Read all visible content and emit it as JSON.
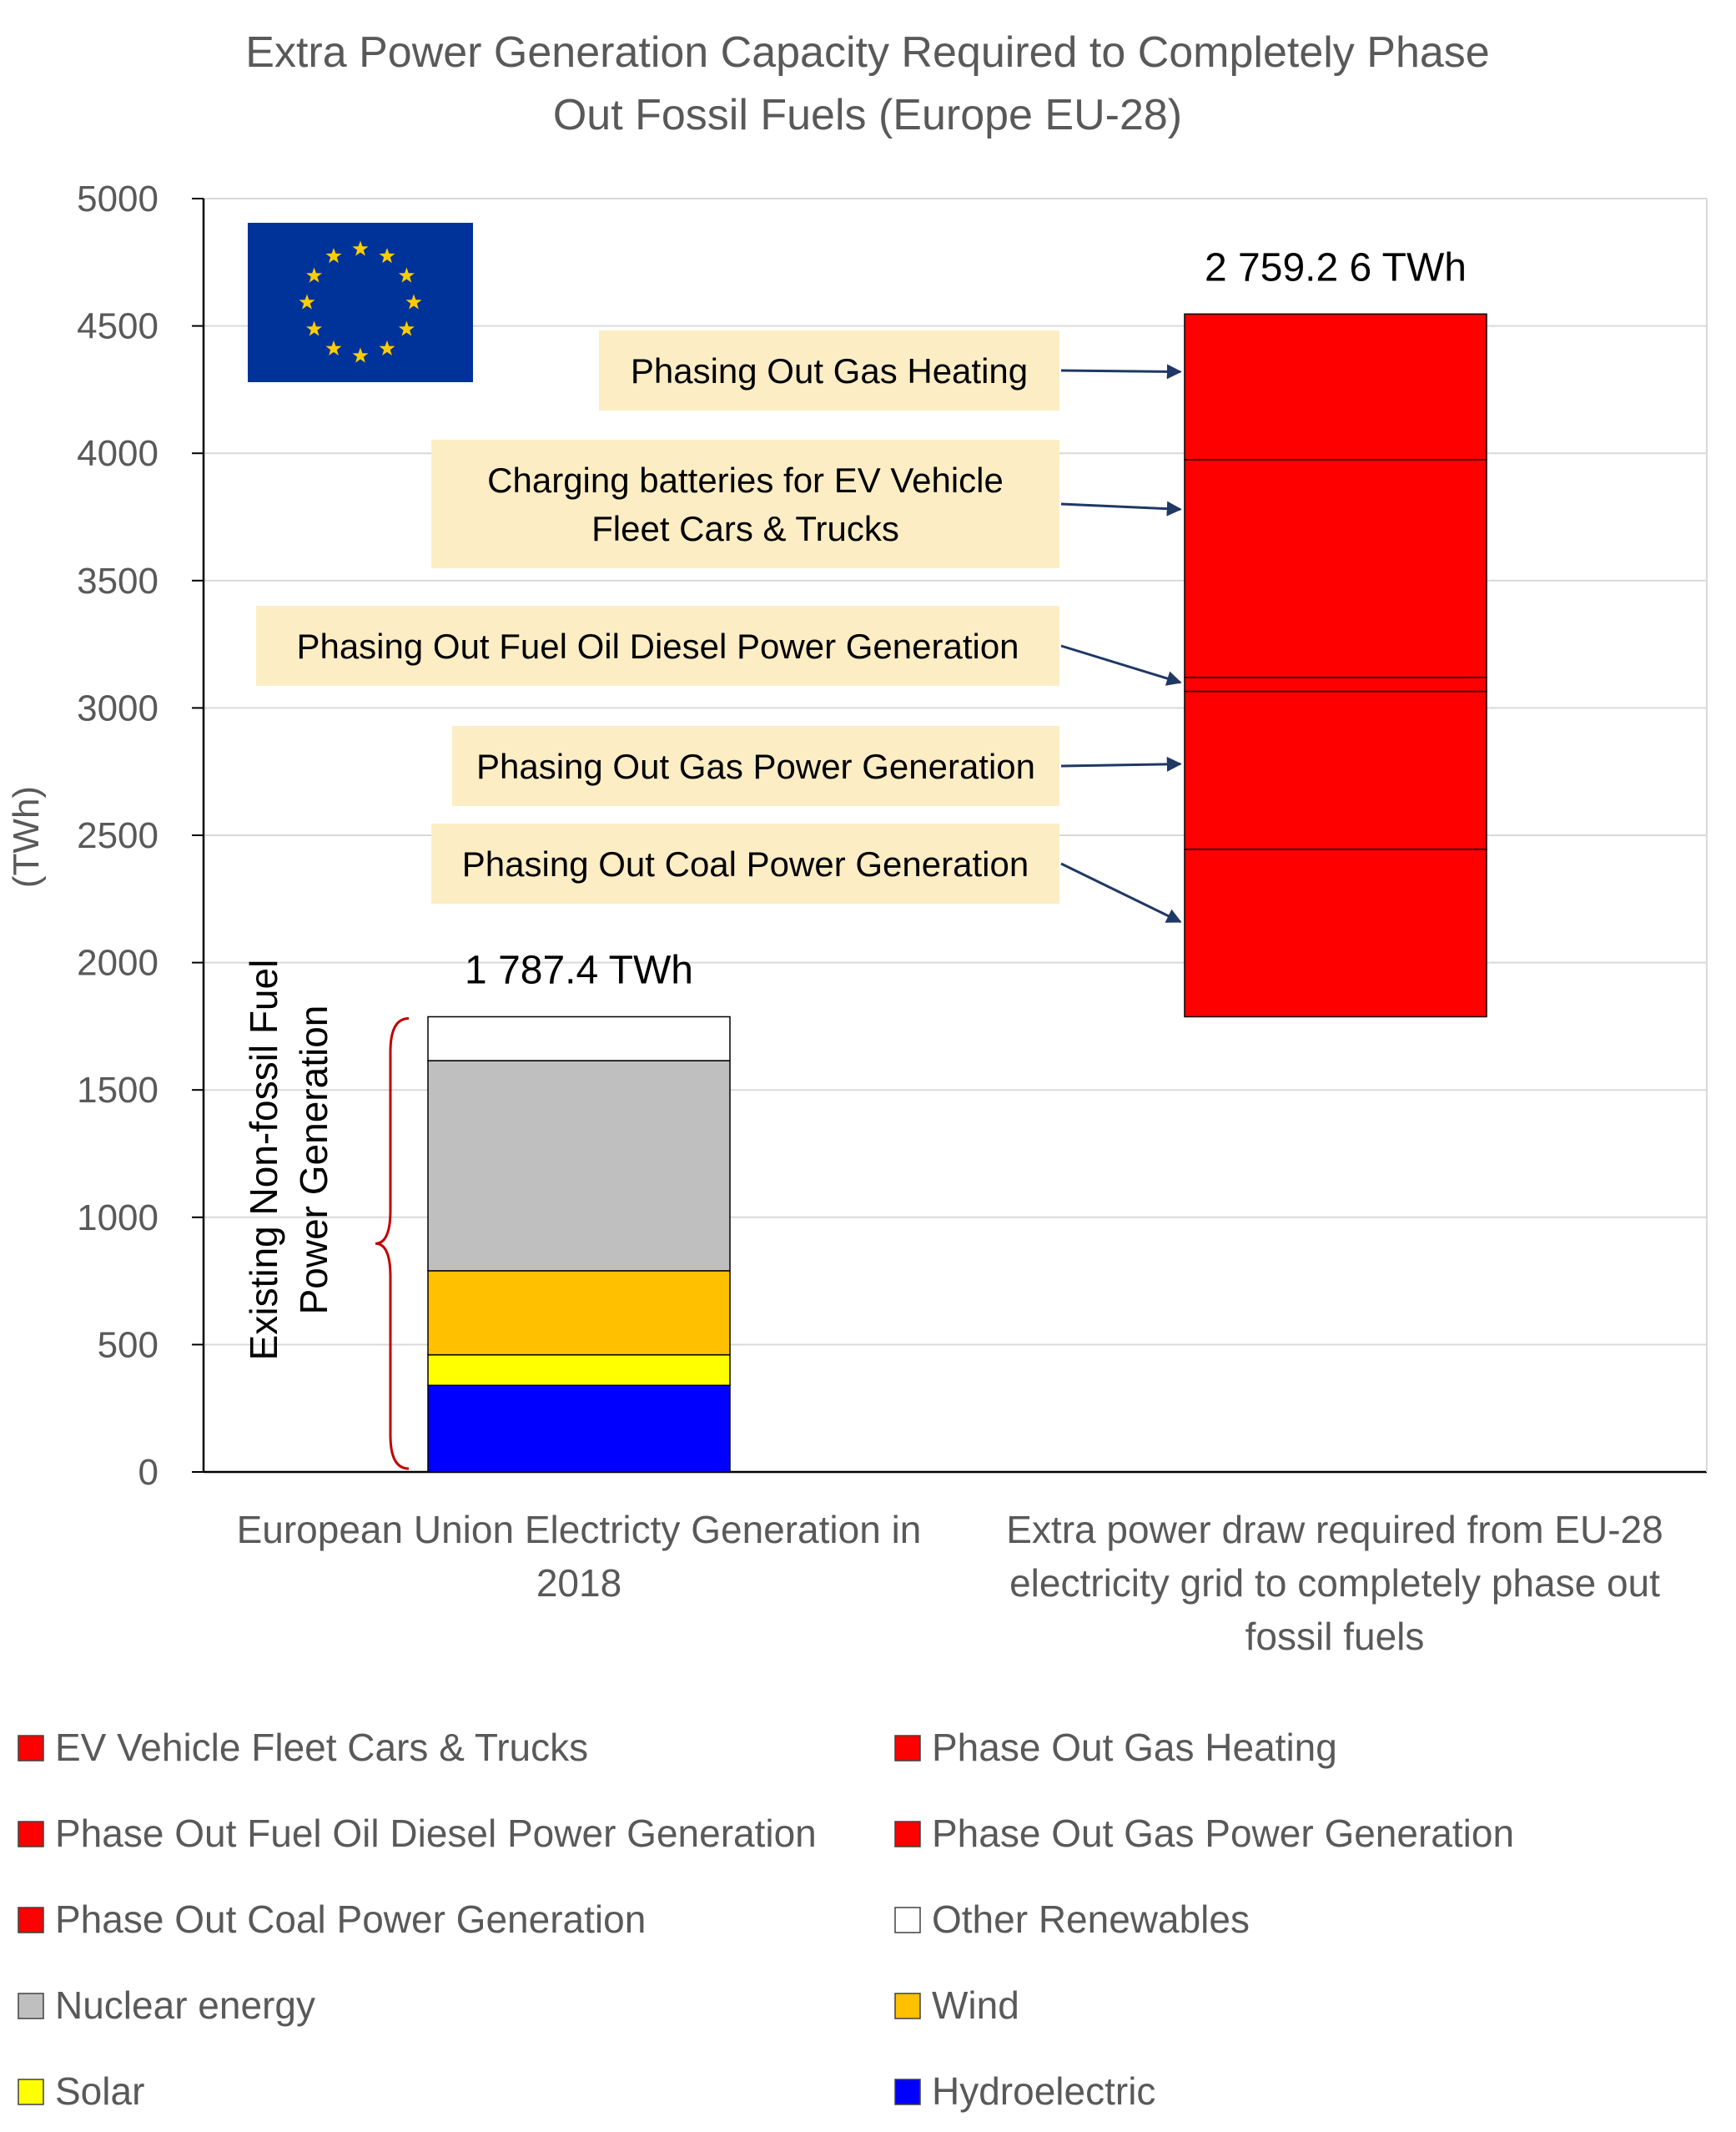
{
  "chart_data": {
    "type": "bar",
    "stacked": true,
    "title_lines": [
      "Extra Power Generation Capacity Required to Completely Phase",
      "Out Fossil Fuels (Europe EU-28)"
    ],
    "ylabel": "(TWh)",
    "ylim": [
      0,
      5000
    ],
    "yticks": [
      "0",
      "500",
      "1000",
      "1500",
      "2000",
      "2500",
      "3000",
      "3500",
      "4000",
      "4500",
      "5000"
    ],
    "grid": true,
    "legend_position": "bottom",
    "categories": [
      {
        "lines": [
          "European Union Electricty Generation in",
          "2018"
        ]
      },
      {
        "lines": [
          "Extra power draw required from EU-28",
          "electricity grid to completely phase out",
          "fossil fuels"
        ]
      }
    ],
    "bars": [
      {
        "total_label": "1 787.4 TWh",
        "segments": [
          {
            "name": "Hydroelectric",
            "from": 0,
            "to": 340,
            "color": "#0000FF"
          },
          {
            "name": "Solar",
            "from": 340,
            "to": 460,
            "color": "#FFFF00"
          },
          {
            "name": "Wind",
            "from": 460,
            "to": 790,
            "color": "#FFC000"
          },
          {
            "name": "Nuclear energy",
            "from": 790,
            "to": 1615,
            "color": "#BFBFBF"
          },
          {
            "name": "Other Renewables",
            "from": 1615,
            "to": 1787.4,
            "color": "#FFFFFF"
          }
        ]
      },
      {
        "total_label": "2 759.2 6 TWh",
        "segments": [
          {
            "name": "Phase Out Coal Power Generation",
            "from": 1787.4,
            "to": 2445,
            "color": "#FF0000"
          },
          {
            "name": "Phase Out Gas Power Generation",
            "from": 2445,
            "to": 3065,
            "color": "#FF0000"
          },
          {
            "name": "Phase Out Fuel Oil Diesel Power Generation",
            "from": 3065,
            "to": 3120,
            "color": "#FF0000"
          },
          {
            "name": "EV Vehicle Fleet Cars & Trucks",
            "from": 3120,
            "to": 3975,
            "color": "#FF0000"
          },
          {
            "name": "Phase Out Gas Heating",
            "from": 3975,
            "to": 4546.7,
            "color": "#FF0000"
          }
        ]
      }
    ],
    "annotations": [
      {
        "lines": [
          "Phasing Out Gas Heating"
        ],
        "target_value": 4320
      },
      {
        "lines": [
          "Charging batteries for EV Vehicle",
          "Fleet Cars & Trucks"
        ],
        "target_value": 3780
      },
      {
        "lines": [
          "Phasing Out Fuel Oil Diesel Power Generation"
        ],
        "target_value": 3100
      },
      {
        "lines": [
          "Phasing Out Gas Power Generation"
        ],
        "target_value": 2780
      },
      {
        "lines": [
          "Phasing Out Coal Power Generation"
        ],
        "target_value": 2160
      }
    ],
    "brace_label_lines": [
      "Existing Non-fossil Fuel",
      "Power Generation"
    ],
    "annotation_box_color": "#FCEDC4",
    "arrow_color": "#1F3864",
    "legend": [
      {
        "name": "EV Vehicle Fleet Cars & Trucks",
        "color": "#FF0000"
      },
      {
        "name": "Phase Out Gas Heating",
        "color": "#FF0000"
      },
      {
        "name": "Phase Out Fuel Oil Diesel Power Generation",
        "color": "#FF0000"
      },
      {
        "name": "Phase Out Gas Power Generation",
        "color": "#FF0000"
      },
      {
        "name": "Phase Out Coal Power Generation",
        "color": "#FF0000"
      },
      {
        "name": "Other Renewables",
        "color": "#FFFFFF"
      },
      {
        "name": "Nuclear energy",
        "color": "#BFBFBF"
      },
      {
        "name": "Wind",
        "color": "#FFC000"
      },
      {
        "name": "Solar",
        "color": "#FFFF00"
      },
      {
        "name": "Hydroelectric",
        "color": "#0000FF"
      }
    ],
    "flag": {
      "icon": "eu-flag-icon",
      "field_color": "#003399",
      "star_color": "#FFCC00"
    }
  }
}
